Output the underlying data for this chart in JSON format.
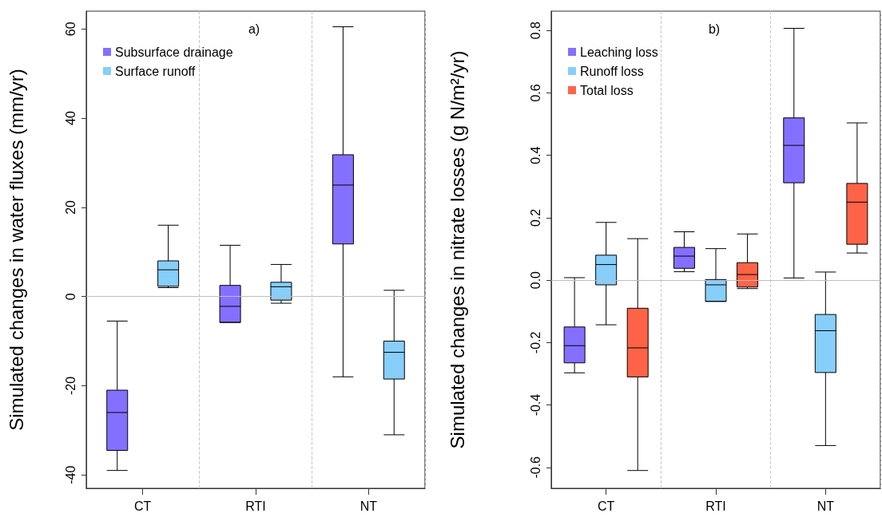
{
  "chart_data": [
    {
      "type": "box",
      "ylabel": "Simulated changes in water fluxes (mm/yr)",
      "annotations": [
        "a)"
      ],
      "categories": [
        "CT",
        "RTI",
        "NT"
      ],
      "ylim": [
        -43,
        64
      ],
      "yticks": [
        -40,
        -20,
        0,
        20,
        40,
        60
      ],
      "grid": "x",
      "legend": "top left",
      "ref_lines": [
        {
          "axis": "y",
          "value": 0,
          "color": "#bebebe"
        }
      ],
      "series": [
        {
          "name": "Subsurface drainage",
          "color": "#8470ff",
          "boxes": [
            {
              "low": -39,
              "q1": -34.5,
              "median": -26,
              "q3": -21,
              "high": -5.5
            },
            {
              "low": -5.8,
              "q1": -5.8,
              "median": -2.2,
              "q3": 2.5,
              "high": 11.5
            },
            {
              "low": -18,
              "q1": 11.8,
              "median": 25,
              "q3": 31.8,
              "high": 60.5
            }
          ]
        },
        {
          "name": "Surface runoff",
          "color": "#87cefa",
          "boxes": [
            {
              "low": 2,
              "q1": 2.3,
              "median": 6,
              "q3": 8,
              "high": 16
            },
            {
              "low": -1.5,
              "q1": -0.8,
              "median": 2.2,
              "q3": 3.2,
              "high": 7.2
            },
            {
              "low": -31,
              "q1": -18.5,
              "median": -12.5,
              "q3": -10,
              "high": 1.4
            }
          ]
        }
      ]
    },
    {
      "type": "box",
      "ylabel": "Simulated changes in nitrate losses (g N/m²/yr)",
      "annotations": [
        "b)"
      ],
      "categories": [
        "CT",
        "RTI",
        "NT"
      ],
      "ylim": [
        -0.667,
        0.862
      ],
      "yticks": [
        {
          "value": -0.6,
          "label": "-0.6"
        },
        {
          "value": -0.4,
          "label": "-0.4"
        },
        {
          "value": -0.2,
          "label": "-0.2"
        },
        {
          "value": 0,
          "label": "0.0"
        },
        {
          "value": 0.2,
          "label": "0.2"
        },
        {
          "value": 0.4,
          "label": "0.4"
        },
        {
          "value": 0.6,
          "label": "0.6"
        },
        {
          "value": 0.8,
          "label": "0.8"
        }
      ],
      "grid": "x",
      "legend": "top left",
      "ref_lines": [
        {
          "axis": "y",
          "value": 0,
          "color": "#bebebe"
        }
      ],
      "series": [
        {
          "name": "Leaching loss",
          "color": "#8470ff",
          "boxes": [
            {
              "low": -0.297,
              "q1": -0.265,
              "median": -0.21,
              "q3": -0.15,
              "high": 0.008
            },
            {
              "low": 0.027,
              "q1": 0.038,
              "median": 0.077,
              "q3": 0.105,
              "high": 0.155
            },
            {
              "low": 0.007,
              "q1": 0.312,
              "median": 0.432,
              "q3": 0.52,
              "high": 0.807
            }
          ]
        },
        {
          "name": "Runoff loss",
          "color": "#87cefa",
          "boxes": [
            {
              "low": -0.143,
              "q1": -0.015,
              "median": 0.05,
              "q3": 0.08,
              "high": 0.185
            },
            {
              "low": -0.068,
              "q1": -0.068,
              "median": -0.015,
              "q3": 0.002,
              "high": 0.101
            },
            {
              "low": -0.53,
              "q1": -0.296,
              "median": -0.162,
              "q3": -0.11,
              "high": 0.026
            }
          ]
        },
        {
          "name": "Total loss",
          "color": "#ff6347",
          "boxes": [
            {
              "low": -0.61,
              "q1": -0.31,
              "median": -0.217,
              "q3": -0.09,
              "high": 0.133
            },
            {
              "low": -0.027,
              "q1": -0.022,
              "median": 0.018,
              "q3": 0.056,
              "high": 0.148
            },
            {
              "low": 0.087,
              "q1": 0.115,
              "median": 0.25,
              "q3": 0.31,
              "high": 0.504
            }
          ]
        }
      ]
    }
  ]
}
